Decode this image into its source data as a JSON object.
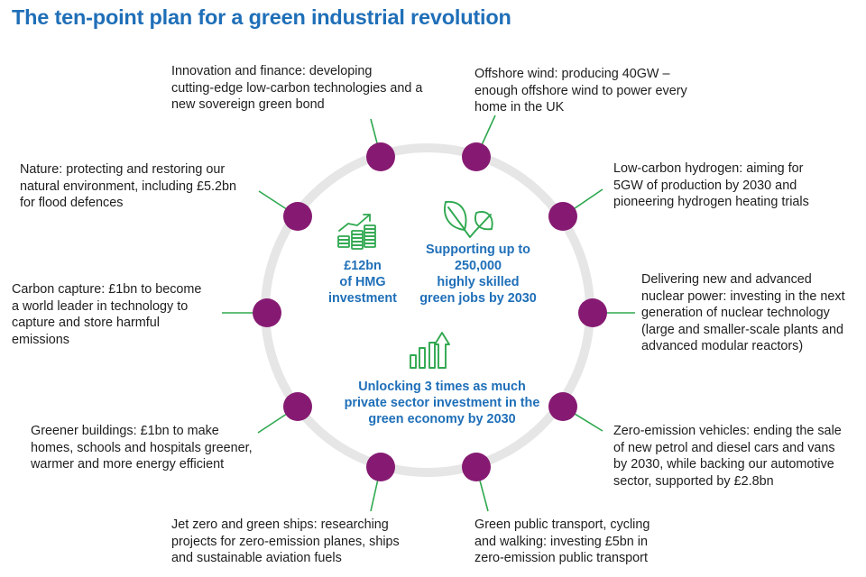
{
  "title": "The ten-point plan for a green industrial revolution",
  "colors": {
    "title": "#1f6fb8",
    "accent_blue": "#1f6fb8",
    "node": "#861a72",
    "connector": "#2fa84f",
    "ring": "#e6e6e6",
    "icon_green": "#2fa84f",
    "body_text": "#1e1e1e"
  },
  "points": [
    {
      "id": "innovation",
      "text": "Innovation and finance: developing\ncutting-edge low-carbon technologies and a\nnew sovereign green bond"
    },
    {
      "id": "offshore-wind",
      "text": "Offshore wind: producing 40GW –\nenough offshore wind to power every\nhome in the UK"
    },
    {
      "id": "hydrogen",
      "text": "Low-carbon hydrogen: aiming for\n5GW of production by 2030 and\npioneering hydrogen heating trials"
    },
    {
      "id": "nuclear",
      "text": "Delivering new and advanced\nnuclear power: investing in the next\ngeneration of nuclear technology\n(large and smaller-scale plants and\nadvanced modular reactors)"
    },
    {
      "id": "vehicles",
      "text": "Zero-emission vehicles: ending the sale\nof new petrol and diesel cars and vans\nby 2030, while backing our automotive\nsector, supported by £2.8bn"
    },
    {
      "id": "transport",
      "text": "Green public transport, cycling\nand walking: investing £5bn in\nzero-emission public transport"
    },
    {
      "id": "jet-zero",
      "text": "Jet zero and green ships: researching\nprojects for zero-emission planes, ships\nand sustainable aviation fuels"
    },
    {
      "id": "buildings",
      "text": "Greener buildings: £1bn to make\nhomes, schools and hospitals greener,\nwarmer and more energy efficient"
    },
    {
      "id": "carbon-capture",
      "text": "Carbon capture: £1bn to become\na world leader in technology to\ncapture and store harmful\nemissions"
    },
    {
      "id": "nature",
      "text": "Nature: protecting and restoring our\nnatural environment, including £5.2bn\nfor flood defences"
    }
  ],
  "center": {
    "investment": "£12bn\nof HMG\ninvestment",
    "jobs": "Supporting up to\n250,000\nhighly skilled\ngreen jobs by 2030",
    "private": "Unlocking 3 times as much\nprivate sector investment in the\ngreen economy by 2030"
  },
  "icons": {
    "investment": "coin-stacks-growth-icon",
    "jobs": "leaves-icon",
    "private": "bar-chart-up-arrow-icon"
  }
}
